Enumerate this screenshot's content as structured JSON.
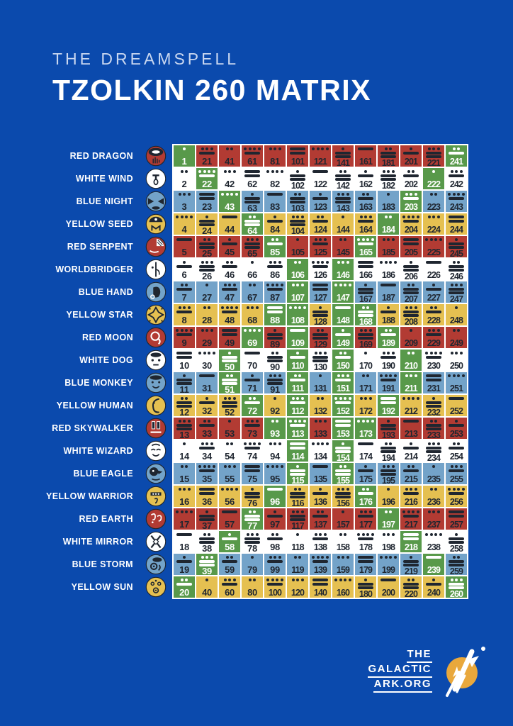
{
  "header": {
    "kicker": "THE DREAMSPELL",
    "title": "TZOLKIN 260 MATRIX"
  },
  "matrix": {
    "columns": 13,
    "rows": 20,
    "kin_range": [
      1,
      260
    ],
    "tone_formula": "tone = ((kin - 1) mod 13) + 1, drawn as Mayan dots (1) and bars (5)",
    "portal_note": "green cells are Galactic Activation Portal kins"
  },
  "seals": [
    {
      "label": "RED DRAGON",
      "color": "red",
      "kins": [
        1,
        21,
        41,
        61,
        81,
        101,
        121,
        141,
        161,
        181,
        201,
        221,
        241
      ]
    },
    {
      "label": "WHITE WIND",
      "color": "white",
      "kins": [
        2,
        22,
        42,
        62,
        82,
        102,
        122,
        142,
        162,
        182,
        202,
        222,
        242
      ]
    },
    {
      "label": "BLUE NIGHT",
      "color": "blue",
      "kins": [
        3,
        23,
        43,
        63,
        83,
        103,
        123,
        143,
        163,
        183,
        203,
        223,
        243
      ]
    },
    {
      "label": "YELLOW SEED",
      "color": "yellow",
      "kins": [
        4,
        24,
        44,
        64,
        84,
        104,
        124,
        144,
        164,
        184,
        204,
        224,
        244
      ]
    },
    {
      "label": "RED SERPENT",
      "color": "red",
      "kins": [
        5,
        25,
        45,
        65,
        85,
        105,
        125,
        145,
        165,
        185,
        205,
        225,
        245
      ]
    },
    {
      "label": "WORLDBRIDGER",
      "color": "white",
      "kins": [
        6,
        26,
        46,
        66,
        86,
        106,
        126,
        146,
        166,
        186,
        206,
        226,
        246
      ]
    },
    {
      "label": "BLUE HAND",
      "color": "blue",
      "kins": [
        7,
        27,
        47,
        67,
        87,
        107,
        127,
        147,
        167,
        187,
        207,
        227,
        247
      ]
    },
    {
      "label": "YELLOW STAR",
      "color": "yellow",
      "kins": [
        8,
        28,
        48,
        68,
        88,
        108,
        128,
        148,
        168,
        188,
        208,
        228,
        248
      ]
    },
    {
      "label": "RED MOON",
      "color": "red",
      "kins": [
        9,
        29,
        49,
        69,
        89,
        109,
        129,
        149,
        169,
        189,
        209,
        229,
        249
      ]
    },
    {
      "label": "WHITE DOG",
      "color": "white",
      "kins": [
        10,
        30,
        50,
        70,
        90,
        110,
        130,
        150,
        170,
        190,
        210,
        230,
        250
      ]
    },
    {
      "label": "BLUE MONKEY",
      "color": "blue",
      "kins": [
        11,
        31,
        51,
        71,
        91,
        111,
        131,
        151,
        171,
        191,
        211,
        231,
        251
      ]
    },
    {
      "label": "YELLOW HUMAN",
      "color": "yellow",
      "kins": [
        12,
        32,
        52,
        72,
        92,
        112,
        132,
        152,
        172,
        192,
        212,
        232,
        252
      ]
    },
    {
      "label": "RED SKYWALKER",
      "color": "red",
      "kins": [
        13,
        33,
        53,
        73,
        93,
        113,
        133,
        153,
        173,
        193,
        213,
        233,
        253
      ]
    },
    {
      "label": "WHITE WIZARD",
      "color": "white",
      "kins": [
        14,
        34,
        54,
        74,
        94,
        114,
        134,
        154,
        174,
        194,
        214,
        234,
        254
      ]
    },
    {
      "label": "BLUE EAGLE",
      "color": "blue",
      "kins": [
        15,
        35,
        55,
        75,
        95,
        115,
        135,
        155,
        175,
        195,
        215,
        235,
        255
      ]
    },
    {
      "label": "YELLOW WARRIOR",
      "color": "yellow",
      "kins": [
        16,
        36,
        56,
        76,
        96,
        116,
        136,
        156,
        176,
        196,
        216,
        236,
        256
      ]
    },
    {
      "label": "RED EARTH",
      "color": "red",
      "kins": [
        17,
        37,
        57,
        77,
        97,
        117,
        137,
        157,
        177,
        197,
        217,
        237,
        257
      ]
    },
    {
      "label": "WHITE MIRROR",
      "color": "white",
      "kins": [
        18,
        38,
        58,
        78,
        98,
        118,
        138,
        158,
        178,
        198,
        218,
        238,
        258
      ]
    },
    {
      "label": "BLUE STORM",
      "color": "blue",
      "kins": [
        19,
        39,
        59,
        79,
        99,
        119,
        139,
        159,
        179,
        199,
        219,
        239,
        259
      ]
    },
    {
      "label": "YELLOW SUN",
      "color": "yellow",
      "kins": [
        20,
        40,
        60,
        80,
        100,
        120,
        140,
        160,
        180,
        200,
        220,
        240,
        260
      ]
    }
  ],
  "gap_kins": [
    1,
    20,
    22,
    39,
    43,
    50,
    51,
    58,
    64,
    69,
    72,
    77,
    85,
    88,
    93,
    96,
    106,
    107,
    108,
    109,
    110,
    111,
    112,
    113,
    114,
    115,
    146,
    147,
    148,
    149,
    150,
    151,
    152,
    153,
    154,
    155,
    165,
    168,
    173,
    176,
    184,
    189,
    192,
    197,
    203,
    210,
    211,
    218,
    222,
    239,
    241,
    260
  ],
  "palette": {
    "background": "#0B4AAD",
    "red": "#B23B33",
    "white": "#FFFFFF",
    "blue": "#73A3C9",
    "yellow": "#E5C051",
    "green": "#58994A",
    "ink": "#1F2630",
    "portal_text": "#FFFFFF",
    "logo_gold": "#E9A83C"
  },
  "brand": {
    "lines": [
      "THE",
      "GALACTIC",
      "ARK.ORG"
    ]
  }
}
